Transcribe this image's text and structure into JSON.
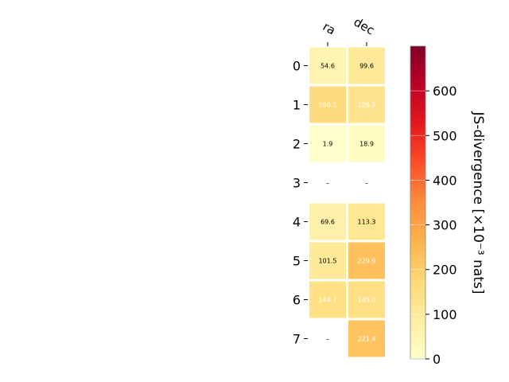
{
  "chart_data": {
    "type": "heatmap",
    "columns": [
      "ra",
      "dec"
    ],
    "rows": [
      "0",
      "1",
      "2",
      "3",
      "4",
      "5",
      "6",
      "7"
    ],
    "values": [
      [
        54.6,
        99.6
      ],
      [
        160.1,
        126.5
      ],
      [
        1.9,
        18.9
      ],
      [
        null,
        null
      ],
      [
        69.6,
        113.3
      ],
      [
        101.5,
        229.9
      ],
      [
        144.7,
        145.0
      ],
      [
        null,
        221.4
      ]
    ],
    "cell_labels": [
      [
        "54.6",
        "99.6"
      ],
      [
        "160.1",
        "126.5"
      ],
      [
        "1.9",
        "18.9"
      ],
      [
        "–",
        "–"
      ],
      [
        "69.6",
        "113.3"
      ],
      [
        "101.5",
        "229.9"
      ],
      [
        "144.7",
        "145.0"
      ],
      [
        "–",
        "221.4"
      ]
    ],
    "colorbar": {
      "label": "JS-divergence [×10⁻³ nats]",
      "min": 0,
      "max": 700,
      "ticks": [
        "0",
        "100",
        "200",
        "300",
        "400",
        "500",
        "600"
      ],
      "colormap": "YlOrRd"
    },
    "title": "",
    "xlabel": "",
    "ylabel": ""
  }
}
